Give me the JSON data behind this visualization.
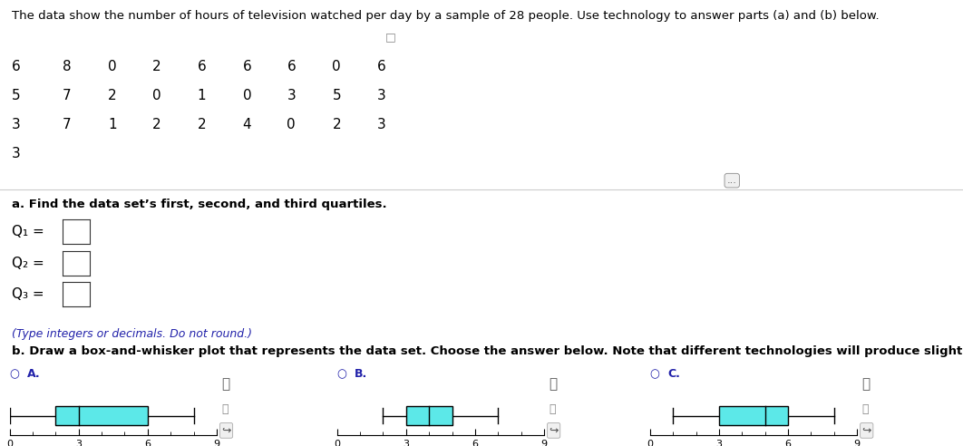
{
  "title": "The data show the number of hours of television watched per day by a sample of 28 people. Use technology to answer parts (a) and (b) below.",
  "data_grid": [
    [
      6,
      8,
      0,
      2,
      6,
      6,
      6,
      0,
      6
    ],
    [
      5,
      7,
      2,
      0,
      1,
      0,
      3,
      5,
      3
    ],
    [
      3,
      7,
      1,
      2,
      2,
      4,
      0,
      2,
      3
    ],
    [
      3
    ]
  ],
  "q1_label": "Q₁ =",
  "q2_label": "Q₂ =",
  "q3_label": "Q₃ =",
  "part_a_label": "a. Find the data set’s first, second, and third quartiles.",
  "type_note": "(Type integers or decimals. Do not round.)",
  "part_b_label": "b. Draw a box-and-whisker plot that represents the data set. Choose the answer below. Note that different technologies will produce slightly different results.",
  "plots": [
    {
      "min": 0,
      "q1": 2,
      "median": 3,
      "q3": 6,
      "max": 8
    },
    {
      "min": 2,
      "q1": 3,
      "median": 4,
      "q3": 5,
      "max": 7
    },
    {
      "min": 1,
      "q1": 3,
      "median": 5,
      "q3": 6,
      "max": 8
    }
  ],
  "option_labels": [
    "A.",
    "B.",
    "C."
  ],
  "box_color": "#5CE8E8",
  "axis_min": 0,
  "axis_max": 9,
  "axis_ticks": [
    0,
    3,
    6,
    9
  ],
  "background_color": "#ffffff",
  "text_color": "#000000",
  "blue_color": "#2222AA",
  "font_size_title": 9.5,
  "font_size_data": 11,
  "font_size_q": 11,
  "font_size_note": 9,
  "font_size_partb": 9.5
}
